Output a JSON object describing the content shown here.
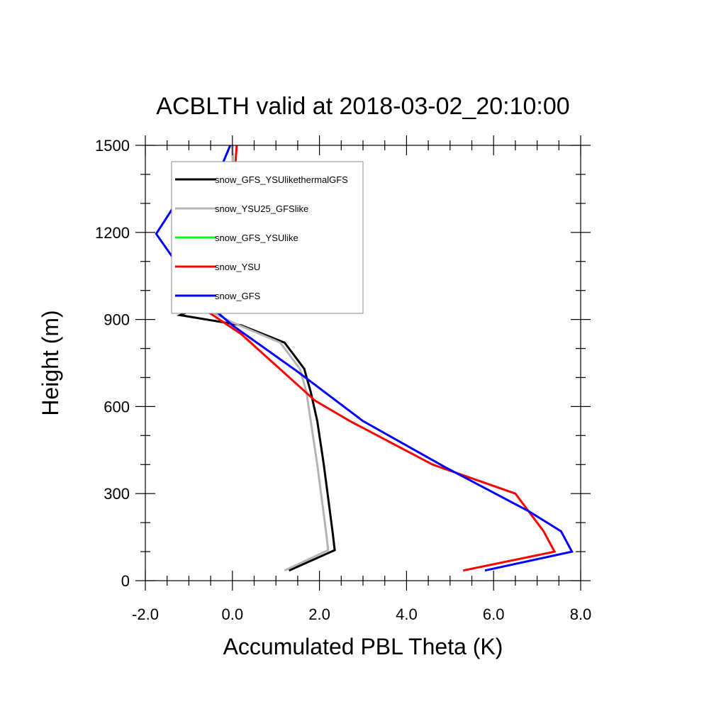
{
  "chart_data": {
    "type": "line",
    "title": "ACBLTH valid at 2018-03-02_20:10:00",
    "xlabel": "Accumulated PBL Theta (K)",
    "ylabel": "Height (m)",
    "xlim": [
      -2.0,
      8.0
    ],
    "ylim": [
      0,
      1500
    ],
    "xticks": [
      "-2.0",
      "0.0",
      "2.0",
      "4.0",
      "6.0",
      "8.0"
    ],
    "yticks": [
      "0",
      "300",
      "600",
      "900",
      "1200",
      "1500"
    ],
    "grid": false,
    "legend_position": "top-left",
    "series": [
      {
        "name": "snow_GFS_YSUlikethermalGFS",
        "color": "#000000",
        "points": [
          [
            1.3,
            35
          ],
          [
            2.35,
            105
          ],
          [
            2.3,
            170
          ],
          [
            2.1,
            400
          ],
          [
            1.95,
            550
          ],
          [
            1.8,
            650
          ],
          [
            1.65,
            730
          ],
          [
            1.2,
            820
          ],
          [
            0.2,
            880
          ],
          [
            -1.2,
            915
          ],
          [
            -0.5,
            960
          ],
          [
            -0.1,
            1010
          ],
          [
            0.0,
            1100
          ],
          [
            0.02,
            1200
          ],
          [
            0.02,
            1300
          ],
          [
            0.02,
            1400
          ],
          [
            0.0,
            1500
          ]
        ]
      },
      {
        "name": "snow_YSU25_GFSlike",
        "color": "#b4b4b4",
        "points": [
          [
            1.2,
            35
          ],
          [
            2.2,
            105
          ],
          [
            2.15,
            170
          ],
          [
            1.95,
            400
          ],
          [
            1.8,
            550
          ],
          [
            1.7,
            650
          ],
          [
            1.55,
            730
          ],
          [
            1.1,
            820
          ],
          [
            0.0,
            890
          ],
          [
            -0.4,
            920
          ],
          [
            -0.3,
            960
          ],
          [
            -0.1,
            1010
          ],
          [
            0.0,
            1100
          ],
          [
            0.02,
            1200
          ],
          [
            0.02,
            1300
          ],
          [
            0.02,
            1400
          ],
          [
            0.0,
            1500
          ]
        ]
      },
      {
        "name": "snow_GFS_YSUlike",
        "color": "#00ff00",
        "points": []
      },
      {
        "name": "snow_YSU",
        "color": "#ff0000",
        "points": [
          [
            5.3,
            35
          ],
          [
            7.4,
            100
          ],
          [
            7.15,
            170
          ],
          [
            6.5,
            300
          ],
          [
            4.6,
            400
          ],
          [
            2.7,
            550
          ],
          [
            1.9,
            620
          ],
          [
            0.2,
            850
          ],
          [
            -0.6,
            930
          ],
          [
            -1.0,
            990
          ],
          [
            -0.9,
            1090
          ],
          [
            -0.1,
            1180
          ],
          [
            0.0,
            1300
          ],
          [
            0.05,
            1400
          ],
          [
            0.1,
            1500
          ]
        ]
      },
      {
        "name": "snow_GFS",
        "color": "#0000ff",
        "points": [
          [
            5.8,
            35
          ],
          [
            7.8,
            100
          ],
          [
            7.55,
            170
          ],
          [
            6.8,
            240
          ],
          [
            4.9,
            390
          ],
          [
            3.0,
            550
          ],
          [
            1.5,
            720
          ],
          [
            0.0,
            880
          ],
          [
            -0.7,
            970
          ],
          [
            -1.75,
            1195
          ],
          [
            -1.3,
            1300
          ],
          [
            -0.3,
            1410
          ],
          [
            -0.05,
            1500
          ]
        ]
      }
    ]
  }
}
